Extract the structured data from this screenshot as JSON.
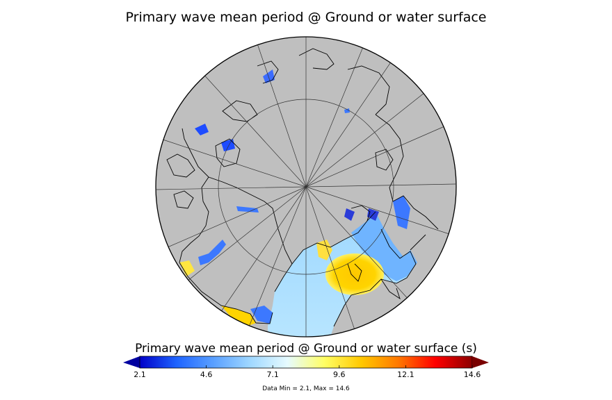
{
  "title": "Primary wave mean period @ Ground or water surface",
  "colorbar": {
    "label": "Primary wave mean period @ Ground or water surface (s)",
    "ticks": [
      "2.1",
      "4.6",
      "7.1",
      "9.6",
      "12.1",
      "14.6"
    ],
    "min": 2.1,
    "max": 14.6,
    "colors": [
      "#0000c8",
      "#1e64ff",
      "#5aa0ff",
      "#a0d8ff",
      "#e6fbff",
      "#ffff64",
      "#ffc800",
      "#ff7800",
      "#ff0000",
      "#8c0000"
    ],
    "under_color": "#0000a0",
    "over_color": "#7a0000"
  },
  "data_summary": "Data Min = 2.1, Max = 14.6",
  "map": {
    "projection": "north-polar-stereographic",
    "land_color": "#bfbfbf",
    "coast_color": "#000000"
  }
}
